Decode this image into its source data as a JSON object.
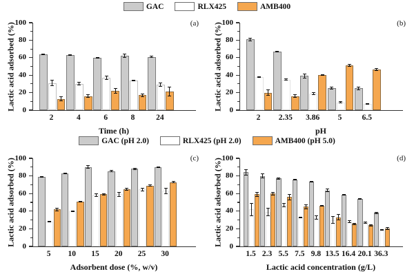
{
  "figure": {
    "background": "#ffffff",
    "axis_color": "#333333",
    "error_bar_color": "#111111"
  },
  "legends": [
    {
      "name": "top",
      "entries": [
        {
          "label": "GAC",
          "fill": "#cbcbcb"
        },
        {
          "label": "RLX425",
          "fill": "#ffffff"
        },
        {
          "label": "AMB400",
          "fill": "#f5a74f"
        }
      ]
    },
    {
      "name": "bottom",
      "entries": [
        {
          "label": "GAC (pH 2.0)",
          "fill": "#cbcbcb"
        },
        {
          "label": "RLX425 (pH 2.0)",
          "fill": "#ffffff"
        },
        {
          "label": "AMB400 (pH 5.0)",
          "fill": "#f5a74f"
        }
      ]
    }
  ],
  "chart_data": [
    {
      "type": "bar",
      "panel_label": "(a)",
      "xlabel": "Time (h)",
      "ylabel": "Lactic acid adsorbed (%)",
      "ylim": [
        0,
        100
      ],
      "yticks": [
        0,
        20,
        40,
        60,
        80,
        100
      ],
      "yticks_minor": [
        10,
        30,
        50,
        70,
        90
      ],
      "categories": [
        "2",
        "4",
        "6",
        "8",
        "24"
      ],
      "series": [
        {
          "name": "GAC",
          "fill": "#cbcbcb",
          "border": "#7a7a7a",
          "values": [
            64,
            63,
            60,
            62,
            61
          ],
          "errors": [
            0.5,
            0.5,
            0.5,
            2,
            0.5
          ]
        },
        {
          "name": "RLX425",
          "fill": "#ffffff",
          "border": "#c0c0c0",
          "values": [
            31,
            30,
            37,
            34,
            29
          ],
          "errors": [
            3,
            1.5,
            2,
            0.5,
            2
          ]
        },
        {
          "name": "AMB400",
          "fill": "#f5a74f",
          "border": "#8d6b40",
          "values": [
            13,
            16,
            22,
            17,
            21
          ],
          "errors": [
            2,
            1.5,
            2.5,
            1.5,
            5
          ]
        }
      ]
    },
    {
      "type": "bar",
      "panel_label": "(b)",
      "xlabel": "pH",
      "ylabel": "Lactic acid adsorbed (%)",
      "ylim": [
        0,
        100
      ],
      "yticks": [
        0,
        20,
        40,
        60,
        80,
        100
      ],
      "yticks_minor": [
        10,
        30,
        50,
        70,
        90
      ],
      "categories": [
        "2",
        "2.35",
        "3.86",
        "5",
        "6.5"
      ],
      "series": [
        {
          "name": "GAC",
          "fill": "#cbcbcb",
          "border": "#7a7a7a",
          "values": [
            81,
            67,
            39,
            25,
            25
          ],
          "errors": [
            1.5,
            0.5,
            2.5,
            1,
            1.5
          ]
        },
        {
          "name": "RLX425",
          "fill": "#ffffff",
          "border": "#e3e3e3",
          "values": [
            38,
            35,
            19,
            9,
            7
          ],
          "errors": [
            0.5,
            1,
            1,
            0.5,
            0.5
          ]
        },
        {
          "name": "AMB400",
          "fill": "#f5a74f",
          "border": "#8d6b40",
          "values": [
            20,
            16,
            40,
            51,
            46.5
          ],
          "errors": [
            3,
            1.5,
            0.5,
            1,
            1
          ]
        }
      ]
    },
    {
      "type": "bar",
      "panel_label": "(c)",
      "xlabel": "Adsorbent dose (%, w/v)",
      "ylabel": "Lactic acid adsorbed (%)",
      "ylim": [
        0,
        100
      ],
      "yticks": [
        0,
        20,
        40,
        60,
        80,
        100
      ],
      "yticks_minor": [
        10,
        30,
        50,
        70,
        90
      ],
      "categories": [
        "5",
        "10",
        "15",
        "20",
        "25",
        "30"
      ],
      "series": [
        {
          "name": "GAC",
          "fill": "#cbcbcb",
          "border": "#7a7a7a",
          "values": [
            79,
            83,
            90,
            85.5,
            88,
            90
          ],
          "errors": [
            0.5,
            0.5,
            1.5,
            0.5,
            0.5,
            0.5
          ]
        },
        {
          "name": "RLX425",
          "fill": "#ffffff",
          "border": "#e3e3e3",
          "values": [
            28,
            40,
            58.5,
            59,
            64.5,
            63
          ],
          "errors": [
            0.5,
            0.5,
            1.5,
            2,
            1.5,
            3
          ]
        },
        {
          "name": "AMB400",
          "fill": "#f5a74f",
          "border": "#8d6b40",
          "values": [
            42,
            51,
            59,
            65,
            69,
            73
          ],
          "errors": [
            1.5,
            0.5,
            1,
            1,
            1,
            1
          ]
        }
      ]
    },
    {
      "type": "bar",
      "panel_label": "(d)",
      "xlabel": "Lactic acid concentration (g/L)",
      "ylabel": "Lactic acid adsorbed (%)",
      "ylim": [
        0,
        100
      ],
      "yticks": [
        0,
        20,
        40,
        60,
        80,
        100
      ],
      "yticks_minor": [
        10,
        30,
        50,
        70,
        90
      ],
      "categories": [
        "1.5",
        "2.3",
        "5.5",
        "7.5",
        "9.8",
        "13.5",
        "16.4",
        "20.1",
        "36.3"
      ],
      "series": [
        {
          "name": "GAC",
          "fill": "#cbcbcb",
          "border": "#7a7a7a",
          "values": [
            84,
            80,
            77,
            76,
            73.5,
            63.5,
            58.5,
            54,
            38
          ],
          "errors": [
            3,
            2.5,
            0.5,
            0.5,
            0.5,
            1.5,
            0.5,
            0.5,
            0.5
          ]
        },
        {
          "name": "RLX425",
          "fill": "#ffffff",
          "border": "#e3e3e3",
          "values": [
            42,
            39,
            47,
            33,
            33,
            30,
            28,
            27,
            19
          ],
          "errors": [
            7,
            4.5,
            2,
            0.5,
            2,
            4,
            1,
            1,
            0.5
          ]
        },
        {
          "name": "AMB400",
          "fill": "#f5a74f",
          "border": "#8d6b40",
          "values": [
            59,
            60,
            56,
            45,
            46,
            33,
            25.5,
            24,
            20.5
          ],
          "errors": [
            2.5,
            1.5,
            3,
            2.5,
            0.5,
            3,
            1,
            1,
            1
          ]
        }
      ]
    }
  ]
}
